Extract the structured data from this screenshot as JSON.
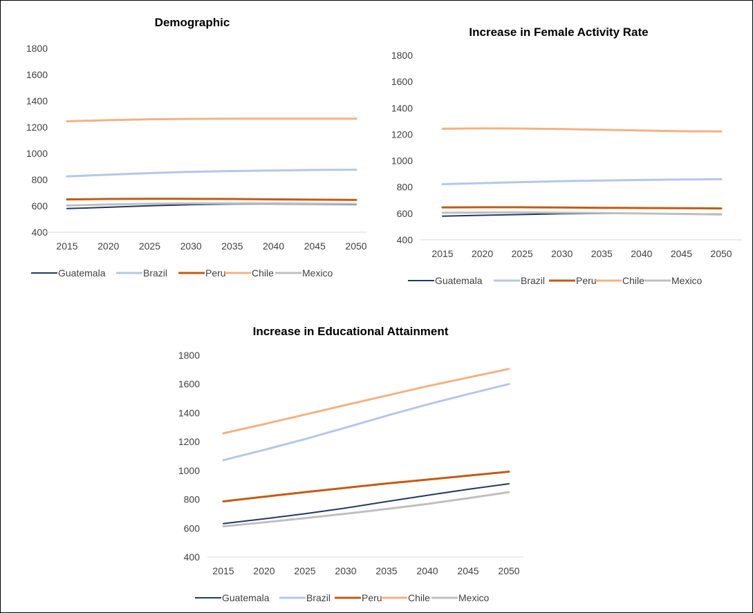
{
  "chart_data": [
    {
      "type": "line",
      "title": "Demographic",
      "xlabel": "",
      "ylabel": "",
      "x": [
        "2015",
        "2020",
        "2025",
        "2030",
        "2035",
        "2040",
        "2045",
        "2050"
      ],
      "ylim": [
        400,
        1800
      ],
      "yticks": [
        400,
        600,
        800,
        1000,
        1200,
        1400,
        1600,
        1800
      ],
      "grid": false,
      "legend_position": "bottom",
      "series": [
        {
          "name": "Guatemala",
          "color": "#203864",
          "width": 2,
          "values": [
            580,
            590,
            601,
            610,
            614,
            615,
            613,
            610
          ]
        },
        {
          "name": "Brazil",
          "color": "#B4C7E7",
          "width": 3,
          "values": [
            825,
            838,
            850,
            860,
            866,
            870,
            874,
            876
          ]
        },
        {
          "name": "Peru",
          "color": "#C55A11",
          "width": 3,
          "values": [
            650,
            653,
            655,
            654,
            653,
            650,
            648,
            646
          ]
        },
        {
          "name": "Chile",
          "color": "#F4B183",
          "width": 3,
          "values": [
            1245,
            1253,
            1260,
            1263,
            1265,
            1265,
            1265,
            1264
          ]
        },
        {
          "name": "Mexico",
          "color": "#BFBFBF",
          "width": 3,
          "values": [
            603,
            611,
            617,
            620,
            620,
            620,
            618,
            615
          ]
        }
      ]
    },
    {
      "type": "line",
      "title": "Increase in Female Activity Rate",
      "xlabel": "",
      "ylabel": "",
      "x": [
        "2015",
        "2020",
        "2025",
        "2030",
        "2035",
        "2040",
        "2045",
        "2050"
      ],
      "ylim": [
        400,
        1800
      ],
      "yticks": [
        400,
        600,
        800,
        1000,
        1200,
        1400,
        1600,
        1800
      ],
      "grid": false,
      "legend_position": "bottom",
      "series": [
        {
          "name": "Guatemala",
          "color": "#203864",
          "width": 2,
          "values": [
            580,
            586,
            592,
            598,
            600,
            600,
            598,
            595
          ]
        },
        {
          "name": "Brazil",
          "color": "#B4C7E7",
          "width": 3,
          "values": [
            822,
            830,
            838,
            845,
            850,
            854,
            857,
            860
          ]
        },
        {
          "name": "Peru",
          "color": "#C55A11",
          "width": 3,
          "values": [
            646,
            647,
            647,
            645,
            643,
            641,
            640,
            638
          ]
        },
        {
          "name": "Chile",
          "color": "#F4B183",
          "width": 3,
          "values": [
            1243,
            1245,
            1244,
            1240,
            1235,
            1229,
            1224,
            1222
          ]
        },
        {
          "name": "Mexico",
          "color": "#BFBFBF",
          "width": 3,
          "values": [
            605,
            607,
            608,
            606,
            603,
            600,
            596,
            592
          ]
        }
      ]
    },
    {
      "type": "line",
      "title": "Increase in Educational Attainment",
      "xlabel": "",
      "ylabel": "",
      "x": [
        "2015",
        "2020",
        "2025",
        "2030",
        "2035",
        "2040",
        "2045",
        "2050"
      ],
      "ylim": [
        400,
        1800
      ],
      "yticks": [
        400,
        600,
        800,
        1000,
        1200,
        1400,
        1600,
        1800
      ],
      "grid": false,
      "legend_position": "bottom",
      "series": [
        {
          "name": "Guatemala",
          "color": "#203864",
          "width": 2,
          "values": [
            632,
            665,
            700,
            740,
            785,
            828,
            870,
            908
          ]
        },
        {
          "name": "Brazil",
          "color": "#B4C7E7",
          "width": 3,
          "values": [
            1072,
            1143,
            1218,
            1298,
            1380,
            1458,
            1530,
            1600
          ]
        },
        {
          "name": "Peru",
          "color": "#C55A11",
          "width": 3,
          "values": [
            786,
            818,
            850,
            880,
            910,
            937,
            965,
            992
          ]
        },
        {
          "name": "Chile",
          "color": "#F4B183",
          "width": 3,
          "values": [
            1258,
            1322,
            1388,
            1455,
            1520,
            1585,
            1645,
            1705
          ]
        },
        {
          "name": "Mexico",
          "color": "#BFBFBF",
          "width": 3,
          "values": [
            613,
            640,
            670,
            700,
            733,
            768,
            808,
            850
          ]
        }
      ]
    }
  ]
}
